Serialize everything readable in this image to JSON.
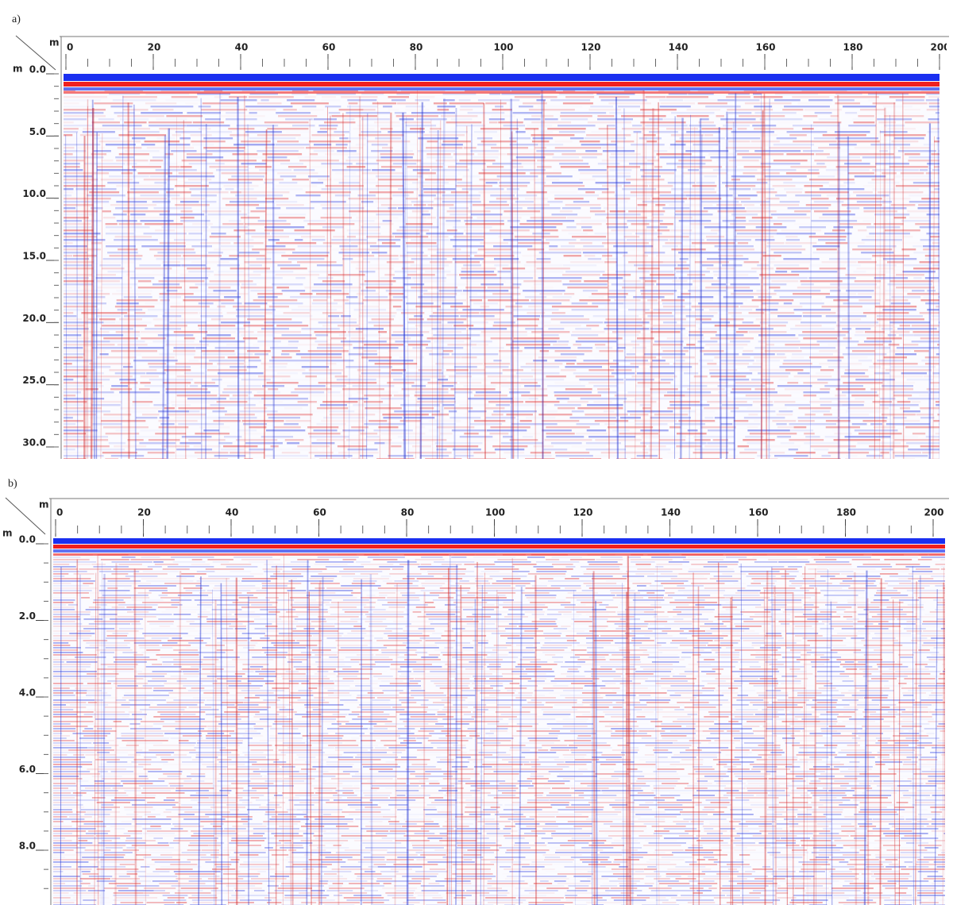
{
  "panels": [
    {
      "label": "a)",
      "x_unit": "m",
      "y_unit": "m",
      "xlim": [
        0,
        200
      ],
      "xticks": [
        0,
        20,
        40,
        60,
        80,
        100,
        120,
        140,
        160,
        180,
        200
      ],
      "x_minor_step": 5,
      "ylim": [
        0,
        30.9
      ],
      "yticks": [
        {
          "value": 0,
          "label": "0.0"
        },
        {
          "value": 5,
          "label": "5.0"
        },
        {
          "value": 10,
          "label": "10.0"
        },
        {
          "value": 15,
          "label": "15.0"
        },
        {
          "value": 20,
          "label": "20.0"
        },
        {
          "value": 25,
          "label": "25.0"
        },
        {
          "value": 30,
          "label": "30.0"
        }
      ],
      "y_minor_step": 1
    },
    {
      "label": "b)",
      "x_unit": "m",
      "y_unit": "m",
      "xlim": [
        0,
        200
      ],
      "xticks": [
        0,
        20,
        40,
        60,
        80,
        100,
        120,
        140,
        160,
        180,
        200
      ],
      "x_minor_step": 5,
      "ylim": [
        0,
        9.3
      ],
      "yticks": [
        {
          "value": 0,
          "label": "0.0"
        },
        {
          "value": 2,
          "label": "2.0"
        },
        {
          "value": 4,
          "label": "4.0"
        },
        {
          "value": 6,
          "label": "6.0"
        },
        {
          "value": 8,
          "label": "8.0"
        }
      ],
      "y_minor_step": 0.5
    }
  ]
}
